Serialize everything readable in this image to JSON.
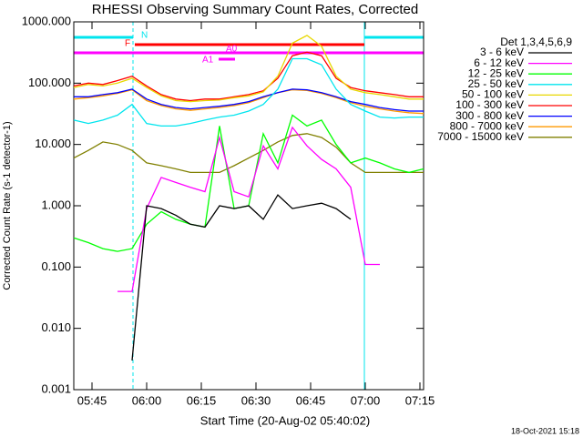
{
  "chart_data": {
    "type": "line",
    "title": "RHESSI Observing Summary Count Rates, Corrected",
    "xlabel": "Start Time (20-Aug-02 05:40:02)",
    "ylabel": "Corrected Count Rate (s-1 detector-1)",
    "legend_title": "Det 1,3,4,5,6,9",
    "legend": "right",
    "log_y": true,
    "footer": "18-Oct-2021 15:18",
    "annotations": [
      "N",
      "F",
      "A0",
      "A1"
    ],
    "xlim": [
      0,
      96
    ],
    "xticks": [
      {
        "value": 5,
        "label": "05:45"
      },
      {
        "value": 20,
        "label": "06:00"
      },
      {
        "value": 35,
        "label": "06:15"
      },
      {
        "value": 50,
        "label": "06:30"
      },
      {
        "value": 65,
        "label": "06:45"
      },
      {
        "value": 80,
        "label": "07:00"
      },
      {
        "value": 95,
        "label": "07:15"
      }
    ],
    "ylim": [
      0.001,
      1000
    ],
    "yticks": [
      {
        "value": 1000,
        "label": "1000.000"
      },
      {
        "value": 100,
        "label": "100.000"
      },
      {
        "value": 10,
        "label": "10.000"
      },
      {
        "value": 1,
        "label": "1.000"
      },
      {
        "value": 0.1,
        "label": "0.100"
      },
      {
        "value": 0.01,
        "label": "0.010"
      },
      0.001
    ],
    "x": [
      0,
      4,
      8,
      12,
      16,
      20,
      24,
      28,
      32,
      36,
      40,
      44,
      48,
      52,
      56,
      60,
      64,
      68,
      72,
      76,
      80,
      84,
      88,
      92,
      96
    ],
    "series": [
      {
        "name": "3 - 6 keV",
        "color": "#000000",
        "values": [
          null,
          null,
          null,
          null,
          0.003,
          1.0,
          0.9,
          0.7,
          0.5,
          0.45,
          1.0,
          0.9,
          1.0,
          0.6,
          1.5,
          0.9,
          1.0,
          1.1,
          0.9,
          0.6,
          null,
          null,
          null,
          null,
          null
        ]
      },
      {
        "name": "6 - 12 keV",
        "color": "#ff00ff",
        "values": [
          null,
          null,
          null,
          0.04,
          0.04,
          0.9,
          2.9,
          2.4,
          2.0,
          1.7,
          13,
          1.7,
          1.4,
          9.5,
          4,
          19,
          9.5,
          5.7,
          4,
          2,
          0.11,
          0.11,
          null,
          null,
          null
        ]
      },
      {
        "name": "12 - 25 keV",
        "color": "#00ff00",
        "values": [
          0.3,
          0.25,
          0.2,
          0.18,
          0.2,
          0.5,
          0.8,
          0.6,
          0.5,
          0.45,
          20,
          0.9,
          1.0,
          15,
          5,
          30,
          20,
          25,
          10,
          5,
          6,
          5,
          4,
          3.5,
          4
        ]
      },
      {
        "name": "25 - 50 keV",
        "color": "#00e5ee",
        "values": [
          25,
          22,
          25,
          30,
          45,
          22,
          20,
          20,
          22,
          25,
          28,
          30,
          35,
          45,
          80,
          250,
          250,
          200,
          80,
          45,
          35,
          28,
          27,
          28,
          28
        ]
      },
      {
        "name": "50 - 100 keV",
        "color": "#e8d800",
        "values": [
          85,
          95,
          90,
          100,
          120,
          85,
          62,
          52,
          50,
          52,
          53,
          58,
          62,
          72,
          130,
          450,
          600,
          400,
          130,
          80,
          70,
          65,
          60,
          55,
          55
        ]
      },
      {
        "name": "100 - 300 keV",
        "color": "#ff0000",
        "values": [
          90,
          100,
          95,
          110,
          130,
          90,
          65,
          55,
          52,
          55,
          55,
          60,
          65,
          75,
          120,
          280,
          320,
          280,
          120,
          85,
          75,
          70,
          65,
          60,
          60
        ]
      },
      {
        "name": "300 - 800 keV",
        "color": "#0000ff",
        "values": [
          60,
          60,
          65,
          70,
          80,
          55,
          45,
          40,
          38,
          40,
          42,
          45,
          50,
          60,
          70,
          80,
          78,
          70,
          60,
          50,
          45,
          40,
          37,
          35,
          35
        ]
      },
      {
        "name": "800 - 7000 keV",
        "color": "#ff9900",
        "values": [
          55,
          58,
          62,
          68,
          78,
          52,
          43,
          38,
          36,
          38,
          40,
          43,
          48,
          58,
          70,
          78,
          76,
          68,
          58,
          48,
          42,
          38,
          35,
          33,
          32
        ]
      },
      {
        "name": "7000 - 15000 keV",
        "color": "#808000",
        "values": [
          6,
          8,
          11,
          10,
          8,
          5,
          4.5,
          4,
          3.5,
          3.5,
          3.5,
          4.5,
          6,
          8,
          11,
          14,
          15,
          13,
          9,
          5,
          3.5,
          3.5,
          3.5,
          3.5,
          3.5
        ]
      }
    ]
  }
}
